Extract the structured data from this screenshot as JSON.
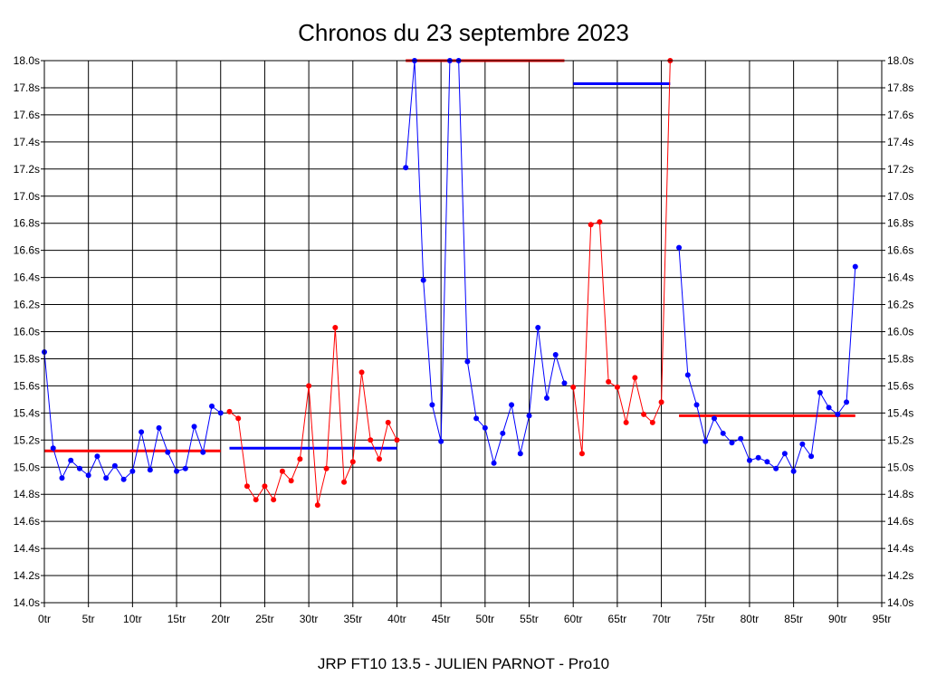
{
  "chart_data": {
    "type": "line",
    "title": "Chronos du 23 septembre 2023",
    "footer": "JRP FT10 13.5 - JULIEN PARNOT - Pro10",
    "xlim": [
      0,
      95
    ],
    "ylim": [
      14.0,
      18.0
    ],
    "x_ticks": [
      0,
      5,
      10,
      15,
      20,
      25,
      30,
      35,
      40,
      45,
      50,
      55,
      60,
      65,
      70,
      75,
      80,
      85,
      90,
      95
    ],
    "x_tick_labels": [
      "0tr",
      "5tr",
      "10tr",
      "15tr",
      "20tr",
      "25tr",
      "30tr",
      "35tr",
      "40tr",
      "45tr",
      "50tr",
      "55tr",
      "60tr",
      "65tr",
      "70tr",
      "75tr",
      "80tr",
      "85tr",
      "90tr",
      "95tr"
    ],
    "y_ticks": [
      14.0,
      14.2,
      14.4,
      14.6,
      14.8,
      15.0,
      15.2,
      15.4,
      15.6,
      15.8,
      16.0,
      16.2,
      16.4,
      16.6,
      16.8,
      17.0,
      17.2,
      17.4,
      17.6,
      17.8,
      18.0
    ],
    "y_tick_labels": [
      "14.0s",
      "14.2s",
      "14.4s",
      "14.6s",
      "14.8s",
      "15.0s",
      "15.2s",
      "15.4s",
      "15.6s",
      "15.8s",
      "16.0s",
      "16.2s",
      "16.4s",
      "16.6s",
      "16.8s",
      "17.0s",
      "17.2s",
      "17.4s",
      "17.6s",
      "17.8s",
      "18.0s"
    ],
    "grid": true,
    "series": [
      {
        "color": "#0000ff",
        "x": [
          0,
          1,
          2,
          3,
          4,
          5,
          6,
          7,
          8,
          9,
          10,
          11,
          12,
          13,
          14,
          15,
          16,
          17,
          18,
          19,
          20
        ],
        "values": [
          15.85,
          15.14,
          14.92,
          15.05,
          14.99,
          14.94,
          15.08,
          14.92,
          15.01,
          14.91,
          14.97,
          15.26,
          14.98,
          15.29,
          15.11,
          14.97,
          14.99,
          15.3,
          15.11,
          15.45,
          15.4
        ]
      },
      {
        "color": "#ff0000",
        "x": [
          21,
          22,
          23,
          24,
          25,
          26,
          27,
          28,
          29,
          30,
          31,
          32,
          33,
          34,
          35,
          36,
          37,
          38,
          39,
          40
        ],
        "values": [
          15.41,
          15.36,
          14.86,
          14.76,
          14.86,
          14.76,
          14.97,
          14.9,
          15.06,
          15.6,
          14.72,
          14.99,
          16.03,
          14.89,
          15.04,
          15.7,
          15.2,
          15.06,
          15.33,
          15.2
        ]
      },
      {
        "color": "#0000ff",
        "x": [
          41,
          42,
          43,
          44,
          45,
          46,
          47,
          48,
          49,
          50,
          51,
          52,
          53,
          54,
          55,
          56,
          57,
          58,
          59
        ],
        "values": [
          17.21,
          18.0,
          16.38,
          15.46,
          15.19,
          18.0,
          18.0,
          15.78,
          15.36,
          15.29,
          15.03,
          15.25,
          15.46,
          15.1,
          15.38,
          16.03,
          15.51,
          15.83,
          15.62
        ]
      },
      {
        "color": "#ff0000",
        "x": [
          60,
          61,
          62,
          63,
          64,
          65,
          66,
          67,
          68,
          69,
          70,
          71
        ],
        "values": [
          15.59,
          15.1,
          16.79,
          16.81,
          15.63,
          15.59,
          15.33,
          15.66,
          15.39,
          15.33,
          15.48,
          18.0
        ]
      },
      {
        "color": "#0000ff",
        "x": [
          72,
          73,
          74,
          75,
          76,
          77,
          78,
          79,
          80,
          81,
          82,
          83,
          84,
          85,
          86,
          87,
          88,
          89,
          90,
          91,
          92
        ],
        "values": [
          16.62,
          15.68,
          15.46,
          15.19,
          15.36,
          15.25,
          15.18,
          15.21,
          15.05,
          15.07,
          15.04,
          14.99,
          15.1,
          14.97,
          15.17,
          15.08,
          15.55,
          15.44,
          15.39,
          15.48,
          16.48
        ]
      }
    ],
    "averages": [
      {
        "color": "#ff0000",
        "x_start": 0,
        "x_end": 20,
        "value": 15.12
      },
      {
        "color": "#0000ff",
        "x_start": 21,
        "x_end": 40,
        "value": 15.14
      },
      {
        "color": "#ff0000",
        "x_start": 41,
        "x_end": 59,
        "value": 18.0
      },
      {
        "color": "#0000ff",
        "x_start": 60,
        "x_end": 71,
        "value": 17.83
      },
      {
        "color": "#ff0000",
        "x_start": 72,
        "x_end": 92,
        "value": 15.38
      }
    ],
    "colors": {
      "background": "#ffffff",
      "axis": "#000000",
      "grid": "#000000"
    }
  }
}
